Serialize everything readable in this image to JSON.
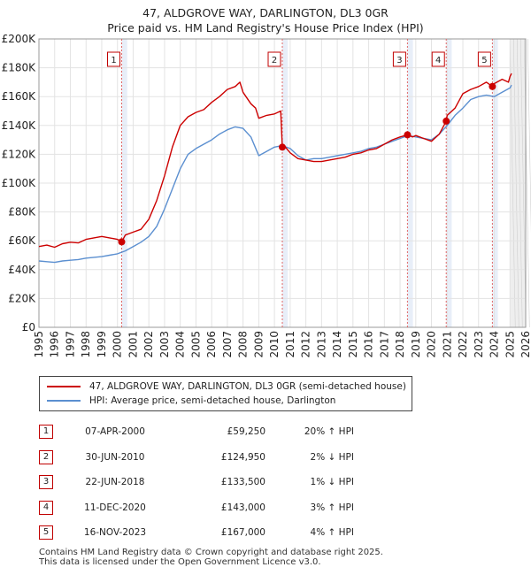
{
  "title_line1": "47, ALDGROVE WAY, DARLINGTON, DL3 0GR",
  "title_line2": "Price paid vs. HM Land Registry's House Price Index (HPI)",
  "chart_data": {
    "type": "line",
    "title": "47, ALDGROVE WAY, DARLINGTON, DL3 0GR — Price paid vs. HM Land Registry's House Price Index (HPI)",
    "xlabel": "",
    "ylabel": "",
    "xlim": [
      1995,
      2026
    ],
    "ylim": [
      0,
      200000
    ],
    "x_ticks": [
      1995,
      1996,
      1997,
      1998,
      1999,
      2000,
      2001,
      2002,
      2003,
      2004,
      2005,
      2006,
      2007,
      2008,
      2009,
      2010,
      2011,
      2012,
      2013,
      2014,
      2015,
      2016,
      2017,
      2018,
      2019,
      2020,
      2021,
      2022,
      2023,
      2024,
      2025,
      2026
    ],
    "y_ticks": [
      0,
      20000,
      40000,
      60000,
      80000,
      100000,
      120000,
      140000,
      160000,
      180000,
      200000
    ],
    "y_tick_labels": [
      "£0",
      "£20K",
      "£40K",
      "£60K",
      "£80K",
      "£100K",
      "£120K",
      "£140K",
      "£160K",
      "£180K",
      "£200K"
    ],
    "future_shade_from": 2025.0,
    "series": [
      {
        "name": "47, ALDGROVE WAY, DARLINGTON, DL3 0GR (semi-detached house)",
        "color": "#cc0000",
        "x": [
          1995.0,
          1995.5,
          1996.0,
          1996.5,
          1997.0,
          1997.5,
          1998.0,
          1998.5,
          1999.0,
          1999.5,
          2000.0,
          2000.27,
          2000.5,
          2001.0,
          2001.5,
          2002.0,
          2002.5,
          2003.0,
          2003.5,
          2004.0,
          2004.5,
          2005.0,
          2005.5,
          2006.0,
          2006.5,
          2007.0,
          2007.5,
          2007.8,
          2008.0,
          2008.5,
          2008.8,
          2009.0,
          2009.5,
          2010.0,
          2010.4,
          2010.5,
          2010.7,
          2011.0,
          2011.5,
          2012.0,
          2012.5,
          2013.0,
          2013.5,
          2014.0,
          2014.5,
          2015.0,
          2015.5,
          2016.0,
          2016.5,
          2017.0,
          2017.5,
          2018.0,
          2018.47,
          2018.8,
          2019.0,
          2019.5,
          2020.0,
          2020.5,
          2020.94,
          2021.0,
          2021.5,
          2022.0,
          2022.5,
          2023.0,
          2023.5,
          2023.88,
          2024.0,
          2024.5,
          2024.9,
          2025.0,
          2025.1
        ],
        "y": [
          56000,
          57000,
          55500,
          58000,
          59000,
          58500,
          61000,
          62000,
          63000,
          62000,
          61000,
          59250,
          64000,
          66000,
          68000,
          75000,
          88000,
          105000,
          125000,
          140000,
          146000,
          149000,
          151000,
          156000,
          160000,
          165000,
          167000,
          170000,
          163000,
          155000,
          152000,
          145000,
          147000,
          148000,
          150000,
          124950,
          125000,
          121000,
          117000,
          116000,
          115000,
          115000,
          116000,
          117000,
          118000,
          120000,
          121000,
          123000,
          124000,
          127000,
          130000,
          132000,
          133500,
          132000,
          133000,
          131000,
          129000,
          134000,
          143000,
          147000,
          152000,
          162000,
          165000,
          167000,
          170000,
          167000,
          169000,
          172000,
          170000,
          174000,
          176000
        ]
      },
      {
        "name": "HPI: Average price, semi-detached house, Darlington",
        "color": "#5b8fd0",
        "x": [
          1995.0,
          1995.5,
          1996.0,
          1996.5,
          1997.0,
          1997.5,
          1998.0,
          1998.5,
          1999.0,
          1999.5,
          2000.0,
          2000.5,
          2001.0,
          2001.5,
          2002.0,
          2002.5,
          2003.0,
          2003.5,
          2004.0,
          2004.5,
          2005.0,
          2005.5,
          2006.0,
          2006.5,
          2007.0,
          2007.5,
          2008.0,
          2008.5,
          2009.0,
          2009.5,
          2010.0,
          2010.5,
          2011.0,
          2011.5,
          2012.0,
          2012.5,
          2013.0,
          2013.5,
          2014.0,
          2014.5,
          2015.0,
          2015.5,
          2016.0,
          2016.5,
          2017.0,
          2017.5,
          2018.0,
          2018.5,
          2019.0,
          2019.5,
          2020.0,
          2020.5,
          2021.0,
          2021.5,
          2022.0,
          2022.5,
          2023.0,
          2023.5,
          2024.0,
          2024.5,
          2025.0,
          2025.1
        ],
        "y": [
          46000,
          45500,
          45000,
          46000,
          46500,
          47000,
          48000,
          48500,
          49000,
          50000,
          51000,
          53000,
          56000,
          59000,
          63000,
          70000,
          82000,
          96000,
          110000,
          120000,
          124000,
          127000,
          130000,
          134000,
          137000,
          139000,
          138000,
          132000,
          119000,
          122000,
          125000,
          126000,
          124000,
          119000,
          116000,
          117000,
          117000,
          118000,
          119000,
          120000,
          121000,
          122000,
          124000,
          125000,
          127000,
          129000,
          131000,
          133000,
          132000,
          131000,
          130000,
          134000,
          140000,
          147000,
          152000,
          158000,
          160000,
          161000,
          160000,
          163000,
          166000,
          168000
        ]
      }
    ],
    "markers": [
      {
        "label": "1",
        "x": 2000.27,
        "y": 59250
      },
      {
        "label": "2",
        "x": 2010.5,
        "y": 124950
      },
      {
        "label": "3",
        "x": 2018.47,
        "y": 133500
      },
      {
        "label": "4",
        "x": 2020.94,
        "y": 143000
      },
      {
        "label": "5",
        "x": 2023.88,
        "y": 167000
      }
    ]
  },
  "legend": {
    "series1": "47, ALDGROVE WAY, DARLINGTON, DL3 0GR (semi-detached house)",
    "series2": "HPI: Average price, semi-detached house, Darlington"
  },
  "transactions": [
    {
      "num": "1",
      "date": "07-APR-2000",
      "price": "£59,250",
      "hpi": "20% ↑ HPI"
    },
    {
      "num": "2",
      "date": "30-JUN-2010",
      "price": "£124,950",
      "hpi": "2% ↓ HPI"
    },
    {
      "num": "3",
      "date": "22-JUN-2018",
      "price": "£133,500",
      "hpi": "1% ↓ HPI"
    },
    {
      "num": "4",
      "date": "11-DEC-2020",
      "price": "£143,000",
      "hpi": "3% ↑ HPI"
    },
    {
      "num": "5",
      "date": "16-NOV-2023",
      "price": "£167,000",
      "hpi": "4% ↑ HPI"
    }
  ],
  "footer": {
    "line1": "Contains HM Land Registry data © Crown copyright and database right 2025.",
    "line2": "This data is licensed under the Open Government Licence v3.0."
  }
}
